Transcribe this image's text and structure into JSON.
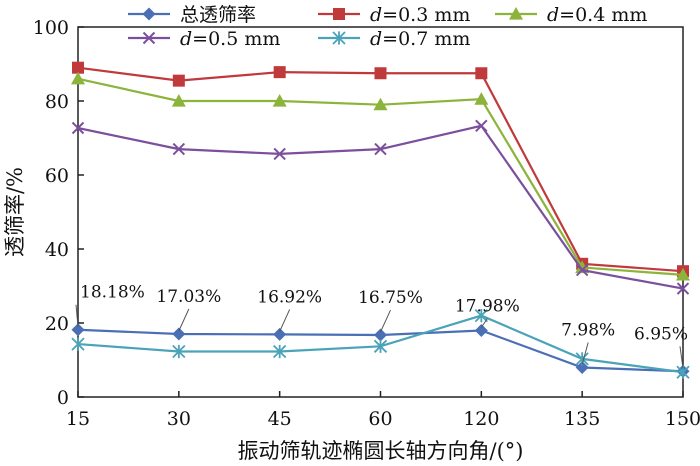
{
  "chart_data": {
    "type": "line",
    "title": "",
    "xlabel": "振动筛轨迹椭圆长轴方向角/(°)",
    "ylabel": "透筛率/%",
    "categories": [
      "15",
      "30",
      "45",
      "60",
      "120",
      "135",
      "150"
    ],
    "ylim": [
      0,
      100
    ],
    "yticks": [
      0,
      20,
      40,
      60,
      80,
      100
    ],
    "series": [
      {
        "name": "总透筛率",
        "color": "#4a6fb5",
        "marker": "diamond",
        "values": [
          18.18,
          17.03,
          16.92,
          16.75,
          17.98,
          7.98,
          6.95
        ]
      },
      {
        "name_prefix": "d",
        "name_suffix": "=0.3 mm",
        "color": "#c0393b",
        "marker": "square",
        "values": [
          89.0,
          85.5,
          87.8,
          87.5,
          87.5,
          36.0,
          34.0
        ]
      },
      {
        "name_prefix": "d",
        "name_suffix": "=0.4 mm",
        "color": "#8db43a",
        "marker": "triangle",
        "values": [
          86.0,
          80.0,
          80.0,
          79.0,
          80.5,
          35.0,
          33.0
        ]
      },
      {
        "name_prefix": "d",
        "name_suffix": "=0.5 mm",
        "color": "#7b4f9e",
        "marker": "x",
        "values": [
          72.7,
          67.0,
          65.7,
          67.0,
          73.3,
          34.3,
          29.3
        ]
      },
      {
        "name_prefix": "d",
        "name_suffix": "=0.7 mm",
        "color": "#4aa3b8",
        "marker": "star",
        "values": [
          14.3,
          12.3,
          12.3,
          13.7,
          22.0,
          10.3,
          6.7
        ]
      }
    ],
    "annotations": [
      {
        "label": "18.18%",
        "series": 0,
        "index": 0
      },
      {
        "label": "17.03%",
        "series": 0,
        "index": 1
      },
      {
        "label": "16.92%",
        "series": 0,
        "index": 2
      },
      {
        "label": "16.75%",
        "series": 0,
        "index": 3
      },
      {
        "label": "17.98%",
        "series": 0,
        "index": 4
      },
      {
        "label": "7.98%",
        "series": 0,
        "index": 5
      },
      {
        "label": "6.95%",
        "series": 0,
        "index": 6
      }
    ]
  }
}
